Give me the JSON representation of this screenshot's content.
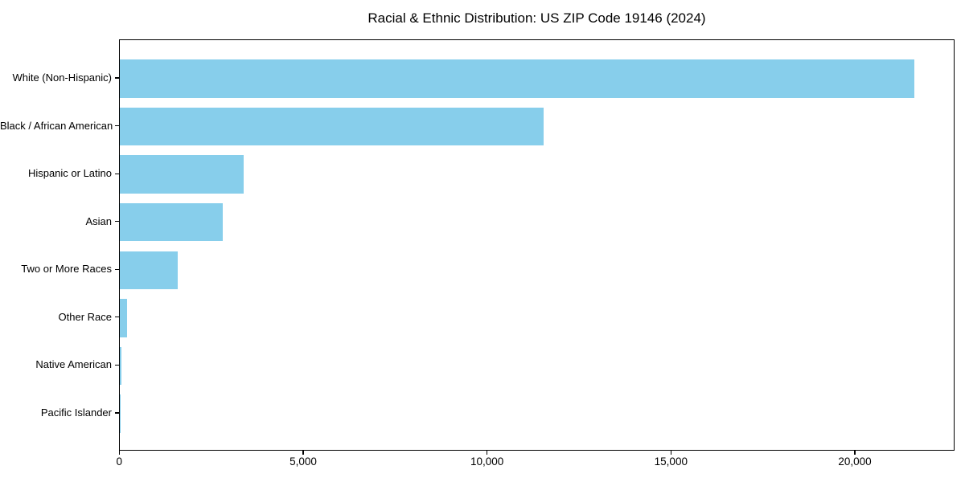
{
  "title": "Racial & Ethnic Distribution: US ZIP Code 19146 (2024)",
  "colors": {
    "bar": "#87CEEB",
    "axis": "#000000",
    "background": "#FFFFFF",
    "text": "#000000"
  },
  "chart_data": {
    "type": "bar",
    "orientation": "horizontal",
    "title": "Racial & Ethnic Distribution: US ZIP Code 19146 (2024)",
    "categories": [
      "White (Non-Hispanic)",
      "Black / African American",
      "Hispanic or Latino",
      "Asian",
      "Two or More Races",
      "Other Race",
      "Native American",
      "Pacific Islander"
    ],
    "values": [
      21600,
      11510,
      3370,
      2790,
      1570,
      200,
      30,
      10
    ],
    "xlabel": "",
    "ylabel": "",
    "xlim": [
      0,
      22700
    ],
    "xticks": [
      0,
      5000,
      10000,
      15000,
      20000
    ],
    "xtick_labels": [
      "0",
      "5,000",
      "10,000",
      "15,000",
      "20,000"
    ],
    "bar_color": "#87CEEB",
    "grid": false,
    "legend": null
  }
}
